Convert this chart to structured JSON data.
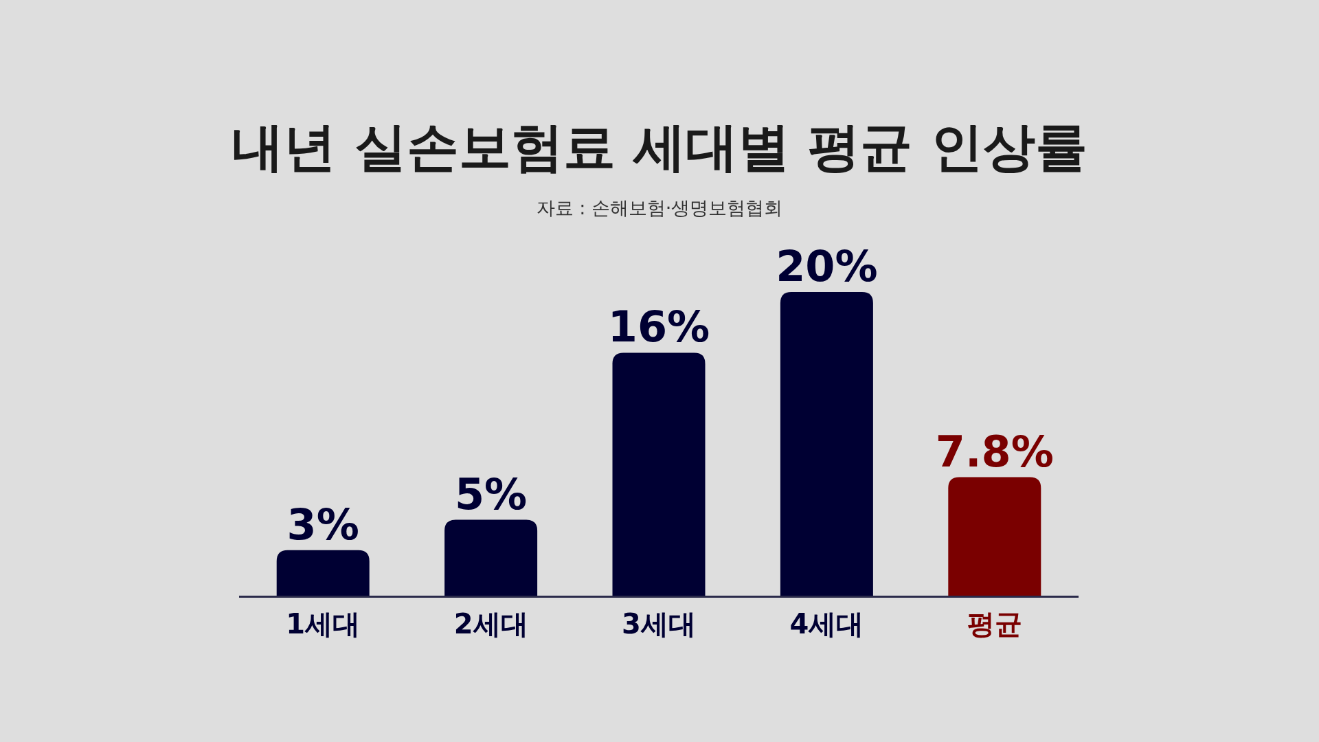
{
  "chart_data": {
    "type": "bar",
    "title": "내년 실손보험료 세대별 평균 인상률",
    "annotations": [
      "자료 : 손해보험·생명보험협회"
    ],
    "categories": [
      "1세대",
      "2세대",
      "3세대",
      "4세대",
      "평균"
    ],
    "values": [
      3,
      5,
      16,
      20,
      7.8
    ],
    "value_labels": [
      "3%",
      "5%",
      "16%",
      "20%",
      "7.8%"
    ],
    "colors": [
      "#000033",
      "#000033",
      "#000033",
      "#000033",
      "#7a0000"
    ]
  }
}
